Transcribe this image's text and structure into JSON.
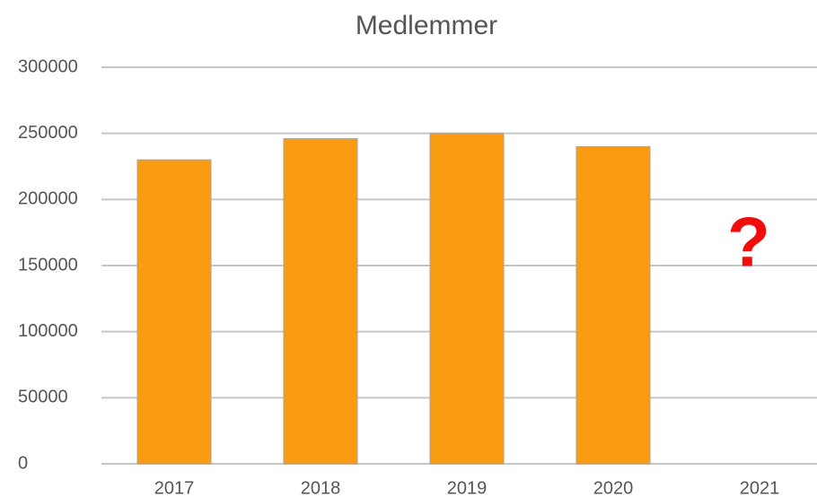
{
  "chart_data": {
    "type": "bar",
    "title": "Medlemmer",
    "categories": [
      "2017",
      "2018",
      "2019",
      "2020",
      "2021"
    ],
    "values": [
      230000,
      246000,
      250000,
      240000,
      null
    ],
    "color": "#fa9c12",
    "ylim": [
      0,
      300000
    ],
    "yticks": [
      0,
      50000,
      100000,
      150000,
      200000,
      250000,
      300000
    ],
    "grid": true,
    "annotation": "?",
    "annotation_color": "#f20d0d"
  }
}
